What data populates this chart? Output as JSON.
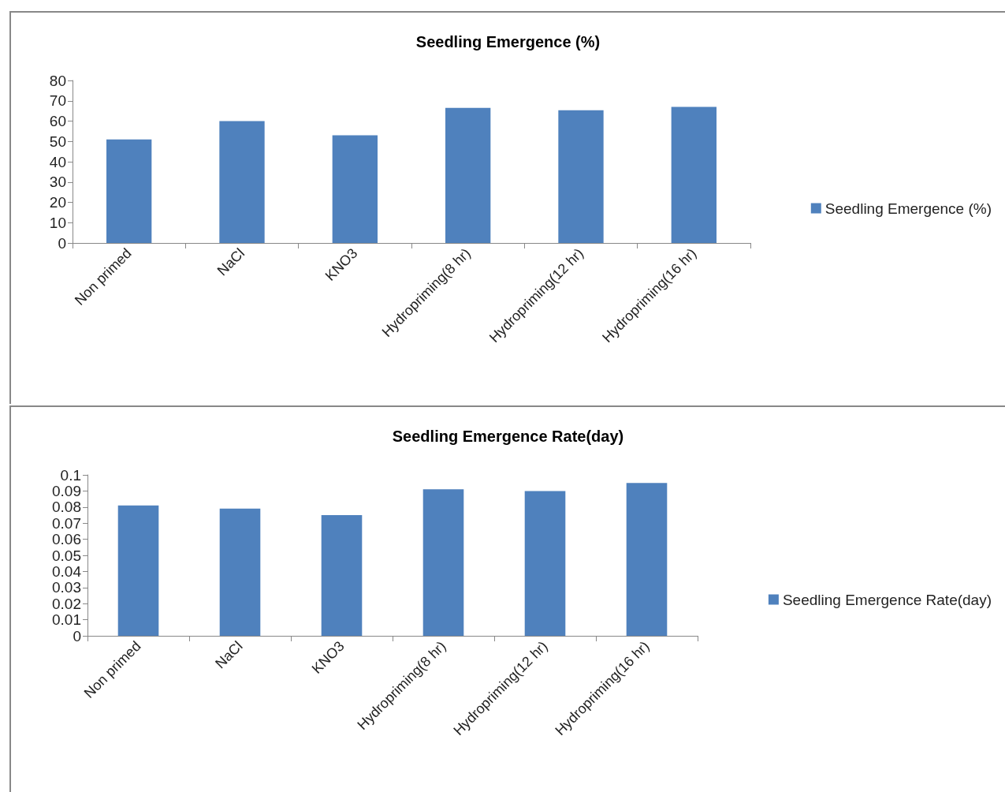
{
  "chart_data": [
    {
      "type": "bar",
      "title": "Seedling Emergence (%)",
      "categories": [
        "Non primed",
        "NaCl",
        "KNO3",
        "Hydropriming(8 hr)",
        "Hydropriming(12 hr)",
        "Hydropriming(16 hr)"
      ],
      "series": [
        {
          "name": "Seedling Emergence (%)",
          "color": "#4f81bd",
          "values": [
            51,
            60,
            53,
            66.5,
            65.3,
            67
          ]
        }
      ],
      "ylim": [
        0,
        80
      ],
      "yticks": [
        0,
        10,
        20,
        30,
        40,
        50,
        60,
        70,
        80
      ],
      "grid": false,
      "legend": "right"
    },
    {
      "type": "bar",
      "title": "Seedling Emergence Rate(day)",
      "categories": [
        "Non primed",
        "NaCl",
        "KNO3",
        "Hydropriming(8 hr)",
        "Hydropriming(12 hr)",
        "Hydropriming(16 hr)"
      ],
      "series": [
        {
          "name": "Seedling Emergence Rate(day)",
          "color": "#4f81bd",
          "values": [
            0.081,
            0.079,
            0.075,
            0.091,
            0.09,
            0.095
          ]
        }
      ],
      "ylim": [
        0,
        0.1
      ],
      "yticks": [
        0,
        0.01,
        0.02,
        0.03,
        0.04,
        0.05,
        0.06,
        0.07,
        0.08,
        0.09,
        0.1
      ],
      "grid": false,
      "legend": "right"
    }
  ]
}
